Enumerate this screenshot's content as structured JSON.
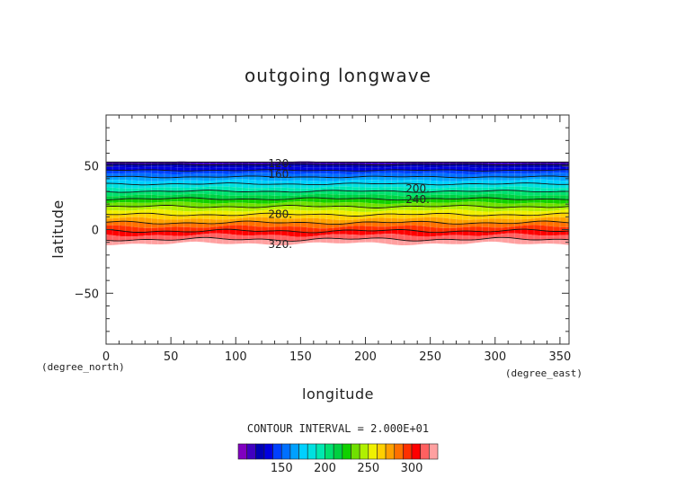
{
  "chart_data": {
    "type": "contour",
    "title": "outgoing longwave",
    "xlabel": "longitude",
    "ylabel": "latitude",
    "x_unit": "(degree_east)",
    "y_unit": "(degree_north)",
    "xlim": [
      0,
      357
    ],
    "ylim": [
      -90,
      90
    ],
    "xticks": [
      0,
      50,
      100,
      150,
      200,
      250,
      300,
      350
    ],
    "yticks": [
      50,
      0,
      -50
    ],
    "ytick_labels": [
      "50",
      "0",
      "−50"
    ],
    "contour_interval_text": "CONTOUR INTERVAL = 2.000E+01",
    "contour_interval": 20,
    "contour_levels": [
      120,
      140,
      160,
      180,
      200,
      220,
      240,
      260,
      280,
      300,
      320
    ],
    "contour_labels": [
      {
        "text": "120.",
        "x": 125,
        "y": 52
      },
      {
        "text": "160.",
        "x": 125,
        "y": 43.5
      },
      {
        "text": "200.",
        "x": 231,
        "y": 32
      },
      {
        "text": "240.",
        "x": 231,
        "y": 23.5
      },
      {
        "text": "280.",
        "x": 125,
        "y": 12
      },
      {
        "text": "320.",
        "x": 125,
        "y": -11.5
      }
    ],
    "data_lat_range": [
      -11,
      53
    ],
    "colorbar_tick_labels": [
      "150",
      "200",
      "250",
      "300"
    ],
    "colorbar_ticks": [
      150,
      200,
      250,
      300
    ],
    "colorbar_range": [
      100,
      330
    ],
    "colorbar_colors": [
      "#8000c0",
      "#4000c0",
      "#0000b4",
      "#0000e0",
      "#0040ff",
      "#0070ff",
      "#00a0ff",
      "#00d0ff",
      "#00e0e0",
      "#00e8b0",
      "#00e070",
      "#00d040",
      "#10d000",
      "#70e000",
      "#b0f000",
      "#f0f000",
      "#ffd000",
      "#ffa000",
      "#ff7000",
      "#ff3000",
      "#ff0000",
      "#ff6060",
      "#ffa0a0"
    ]
  }
}
